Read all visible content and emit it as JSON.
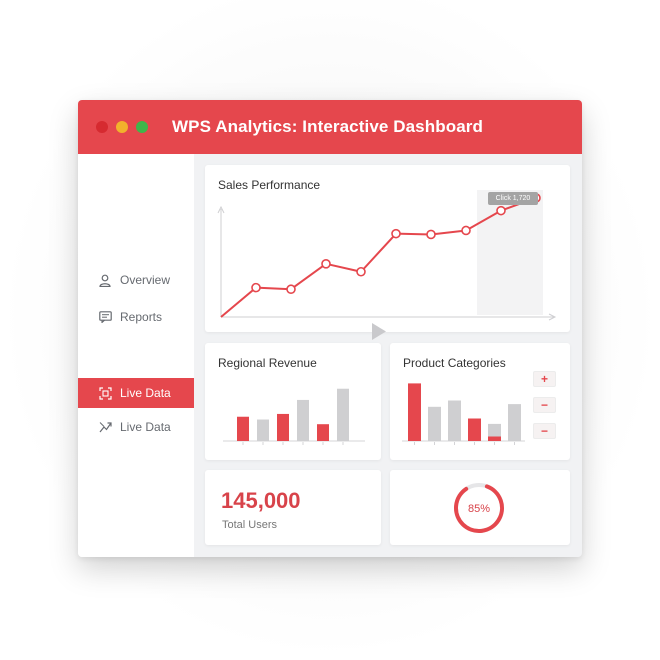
{
  "window": {
    "title": "WPS Analytics: Interactive Dashboard",
    "colors": {
      "accent": "#e5474d",
      "dot_red": "#d62a30",
      "dot_yellow": "#f2b22c",
      "dot_green": "#3fb64a"
    }
  },
  "sidebar": {
    "items": [
      {
        "label": "Overview",
        "icon": "user-icon",
        "active": false
      },
      {
        "label": "Reports",
        "icon": "message-icon",
        "active": false
      },
      {
        "label": "Live Data",
        "icon": "live-data-icon",
        "active": true
      },
      {
        "label": "Live Data",
        "icon": "trend-icon",
        "active": false
      }
    ]
  },
  "sales": {
    "title": "Sales Performance",
    "tooltip": "Click 1,720"
  },
  "regional": {
    "title": "Regional Revenue"
  },
  "categories": {
    "title": "Product Categories",
    "buttons": [
      "+",
      "−",
      "−"
    ]
  },
  "kpi": {
    "value": "145,000",
    "label": "Total Users"
  },
  "gauge": {
    "label": "85%",
    "value": 0.85
  },
  "chart_data": [
    {
      "type": "line",
      "title": "Sales Performance",
      "series": [
        {
          "values": [
            0,
            37,
            35,
            67,
            57,
            105,
            104,
            109,
            134,
            150
          ]
        }
      ],
      "ylim": [
        0,
        160
      ],
      "grid": false
    },
    {
      "type": "bar",
      "title": "Regional Revenue",
      "values": [
        26,
        23,
        29,
        44,
        18,
        56
      ],
      "colors": [
        "#e5474d",
        "#cfcfd1",
        "#e5474d",
        "#cfcfd1",
        "#e5474d",
        "#cfcfd1"
      ],
      "ylim": [
        0,
        60
      ]
    },
    {
      "type": "bar",
      "title": "Product Categories",
      "values": [
        64,
        38,
        45,
        25,
        19,
        41
      ],
      "highlight": [
        0,
        0,
        0,
        25,
        5,
        0
      ],
      "colors": [
        "#e5474d",
        "#cfcfd1",
        "#cfcfd1",
        "#e5474d",
        "#cfcfd1",
        "#cfcfd1"
      ],
      "ylim": [
        0,
        70
      ]
    }
  ]
}
